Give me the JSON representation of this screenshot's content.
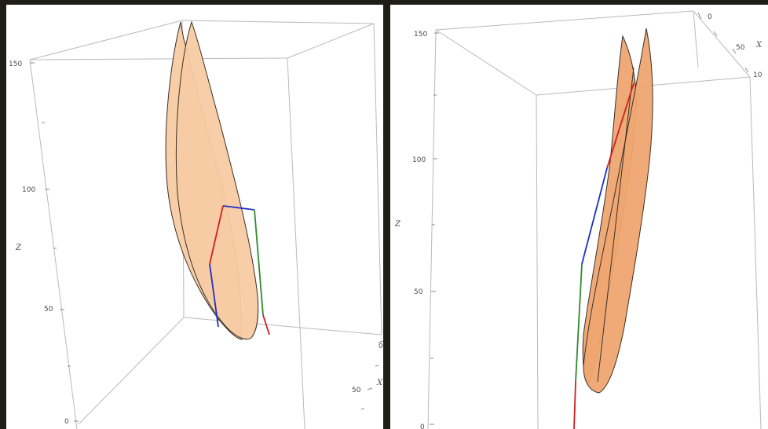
{
  "left_view": {
    "z_axis": {
      "label": "Z",
      "ticks": [
        "150",
        "100",
        "50",
        "0"
      ]
    },
    "x_axis": {
      "label": "X",
      "ticks": [
        "0",
        "50"
      ]
    }
  },
  "right_view": {
    "z_axis": {
      "label": "Z",
      "ticks": [
        "150",
        "100",
        "50",
        "0"
      ]
    },
    "x_axis": {
      "label": "X",
      "ticks": [
        "0",
        "50",
        "10"
      ]
    }
  },
  "colors": {
    "surface_light": "#f7cba3",
    "surface_dark": "#eea571",
    "segment_red": "#d01f1f",
    "segment_blue": "#1d2fc4",
    "segment_green": "#2e8b2e"
  }
}
